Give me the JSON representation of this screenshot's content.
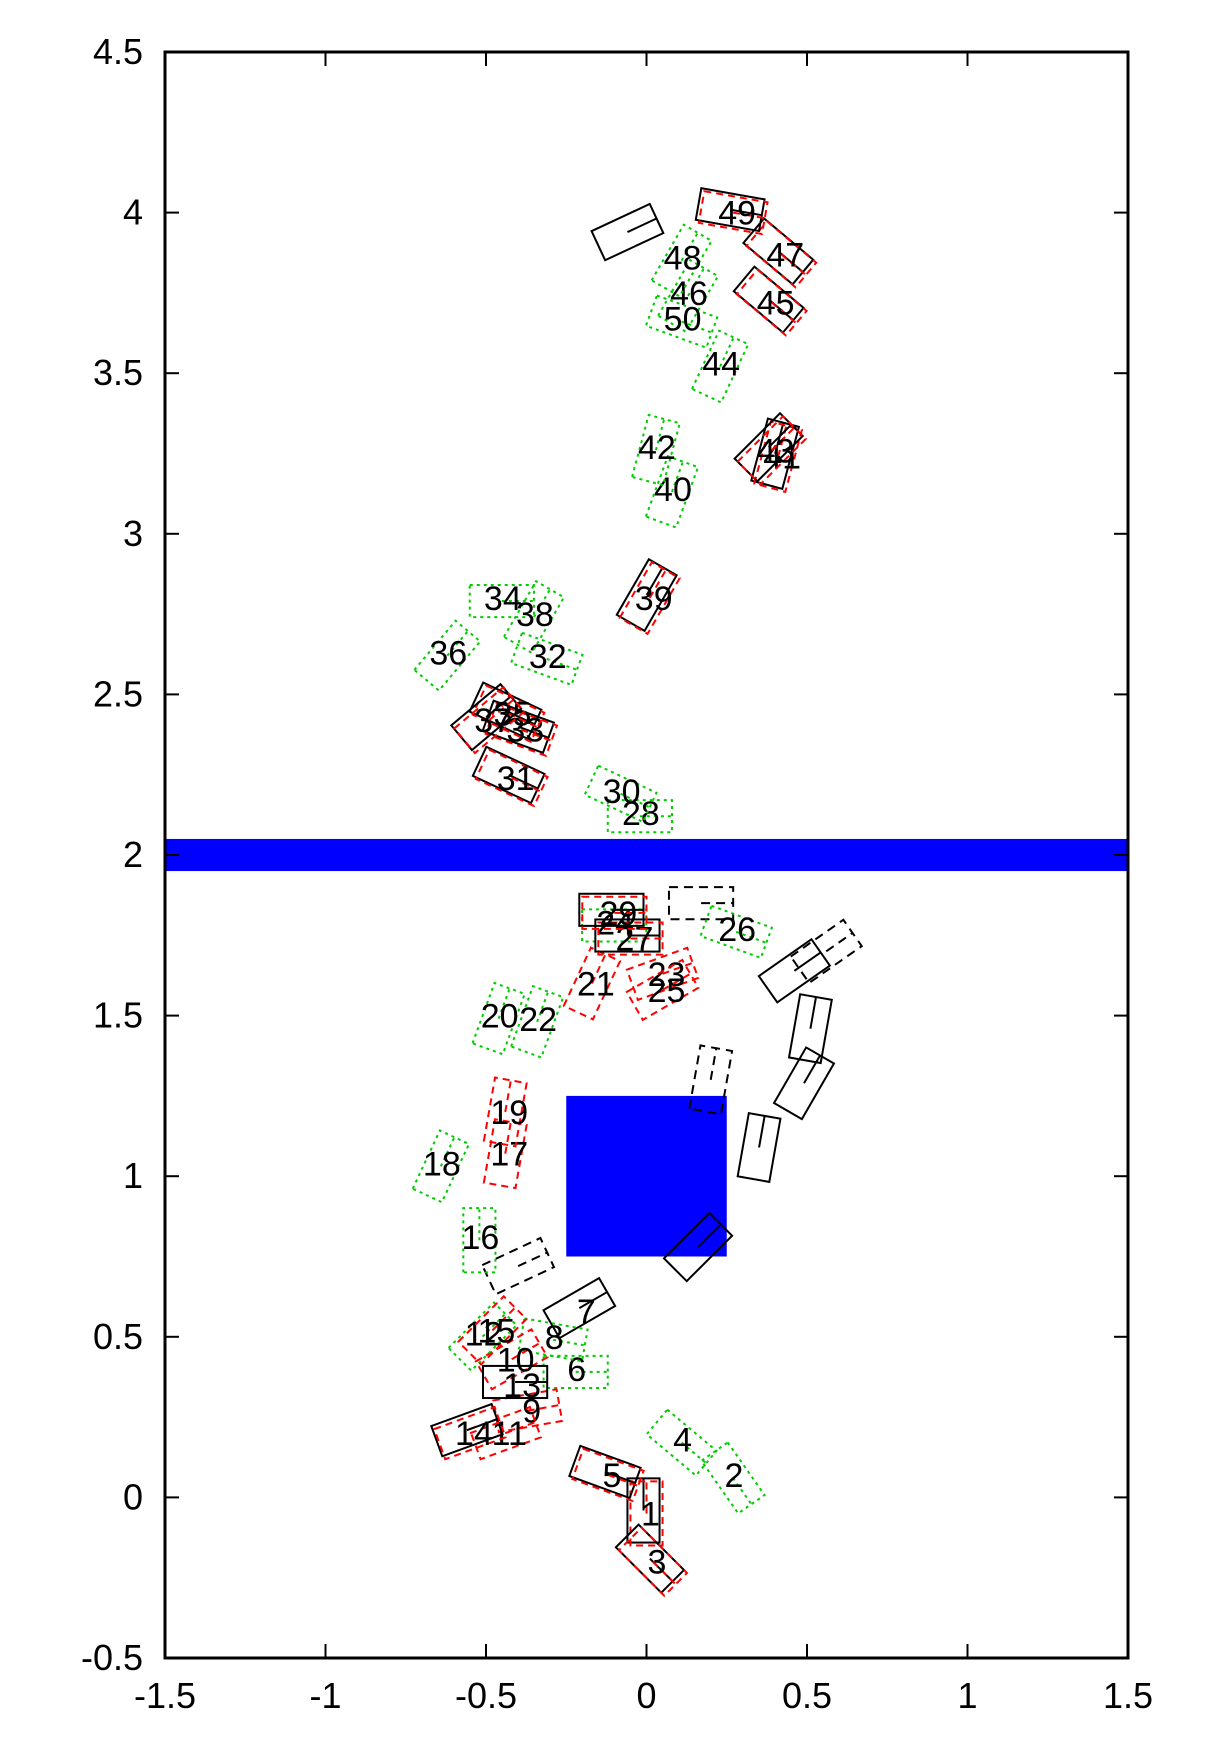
{
  "chart_data": {
    "type": "scatter",
    "xlim": [
      -1.5,
      1.5
    ],
    "ylim": [
      -0.5,
      4.5
    ],
    "x_ticks": [
      -1.5,
      -1,
      -0.5,
      0,
      0.5,
      1,
      1.5
    ],
    "y_ticks": [
      -0.5,
      0,
      0.5,
      1,
      1.5,
      2,
      2.5,
      3,
      3.5,
      4,
      4.5
    ],
    "x_tick_labels": [
      "-1.5",
      "-1",
      "-0.5",
      "0",
      "0.5",
      "1",
      "1.5"
    ],
    "y_tick_labels": [
      "-0.5",
      "0",
      "0.5",
      "1",
      "1.5",
      "2",
      "2.5",
      "3",
      "3.5",
      "4",
      "4.5"
    ],
    "grid": false,
    "colors": {
      "black": "#000000",
      "red": "#ff0000",
      "green": "#00cc00",
      "blue": "#0000ff"
    },
    "obstacles": [
      {
        "type": "wall",
        "x1": -1.5,
        "x2": 1.5,
        "y1": 1.95,
        "y2": 2.05,
        "color": "#0000ff"
      },
      {
        "type": "block",
        "x1": -0.25,
        "x2": 0.25,
        "y1": 0.75,
        "y2": 1.25,
        "color": "#0000ff"
      }
    ],
    "boxes": [
      {
        "id": "1",
        "x": 0.0,
        "y": -0.05,
        "theta": 90,
        "black": true,
        "red": true,
        "green": false
      },
      {
        "id": "2",
        "x": 0.26,
        "y": 0.07,
        "theta": -55,
        "black": false,
        "red": false,
        "green": true
      },
      {
        "id": "3",
        "x": 0.02,
        "y": -0.2,
        "theta": -45,
        "black": true,
        "red": true,
        "green": false
      },
      {
        "id": "4",
        "x": 0.1,
        "y": 0.18,
        "theta": -40,
        "black": false,
        "red": false,
        "green": true
      },
      {
        "id": "5",
        "x": -0.12,
        "y": 0.07,
        "theta": -20,
        "black": true,
        "red": true,
        "green": false
      },
      {
        "id": "6",
        "x": -0.23,
        "y": 0.4,
        "theta": 0,
        "black": false,
        "red": false,
        "green": true
      },
      {
        "id": "7",
        "x": -0.2,
        "y": 0.58,
        "theta": 30,
        "black": true,
        "red": false,
        "green": false
      },
      {
        "id": "8",
        "x": -0.3,
        "y": 0.5,
        "theta": -10,
        "black": false,
        "red": false,
        "green": true
      },
      {
        "id": "9",
        "x": -0.37,
        "y": 0.27,
        "theta": 10,
        "black": false,
        "red": true,
        "green": false
      },
      {
        "id": "10",
        "x": -0.42,
        "y": 0.43,
        "theta": 30,
        "black": false,
        "red": true,
        "green": false
      },
      {
        "id": "11",
        "x": -0.44,
        "y": 0.2,
        "theta": 20,
        "black": false,
        "red": true,
        "green": false
      },
      {
        "id": "12",
        "x": -0.52,
        "y": 0.51,
        "theta": 45,
        "black": false,
        "red": false,
        "green": true
      },
      {
        "id": "13",
        "x": -0.4,
        "y": 0.35,
        "theta": 0,
        "black": true,
        "red": false,
        "green": false
      },
      {
        "id": "14",
        "x": -0.55,
        "y": 0.2,
        "theta": 20,
        "black": true,
        "red": true,
        "green": false
      },
      {
        "id": "15",
        "x": -0.48,
        "y": 0.52,
        "theta": 45,
        "black": false,
        "red": true,
        "green": false
      },
      {
        "id": "16",
        "x": -0.53,
        "y": 0.81,
        "theta": 90,
        "black": false,
        "red": false,
        "green": true
      },
      {
        "id": "17",
        "x": -0.44,
        "y": 1.07,
        "theta": 80,
        "black": false,
        "red": true,
        "green": false
      },
      {
        "id": "18",
        "x": -0.65,
        "y": 1.04,
        "theta": 65,
        "black": false,
        "red": false,
        "green": true
      },
      {
        "id": "19",
        "x": -0.44,
        "y": 1.2,
        "theta": 80,
        "black": false,
        "red": true,
        "green": false
      },
      {
        "id": "20",
        "x": -0.47,
        "y": 1.5,
        "theta": 70,
        "black": false,
        "red": false,
        "green": true
      },
      {
        "id": "21",
        "x": -0.17,
        "y": 1.6,
        "theta": 65,
        "black": false,
        "red": true,
        "green": false
      },
      {
        "id": "22",
        "x": -0.35,
        "y": 1.49,
        "theta": 70,
        "black": false,
        "red": false,
        "green": true
      },
      {
        "id": "23",
        "x": 0.05,
        "y": 1.63,
        "theta": 20,
        "black": false,
        "red": true,
        "green": false
      },
      {
        "id": "24",
        "x": -0.11,
        "y": 1.79,
        "theta": 0,
        "black": false,
        "red": false,
        "green": true
      },
      {
        "id": "25",
        "x": 0.05,
        "y": 1.58,
        "theta": 30,
        "black": false,
        "red": true,
        "green": false
      },
      {
        "id": "26",
        "x": 0.27,
        "y": 1.77,
        "theta": -20,
        "black": false,
        "red": false,
        "green": true
      },
      {
        "id": "27",
        "x": -0.05,
        "y": 1.74,
        "theta": 0,
        "black": true,
        "red": true,
        "green": false
      },
      {
        "id": "28",
        "x": -0.03,
        "y": 2.13,
        "theta": 0,
        "black": false,
        "red": false,
        "green": true
      },
      {
        "id": "29",
        "x": -0.1,
        "y": 1.82,
        "theta": 0,
        "black": true,
        "red": true,
        "green": false
      },
      {
        "id": "30",
        "x": -0.09,
        "y": 2.2,
        "theta": -25,
        "black": false,
        "red": false,
        "green": true
      },
      {
        "id": "31",
        "x": -0.42,
        "y": 2.24,
        "theta": -25,
        "black": true,
        "red": true,
        "green": false
      },
      {
        "id": "32",
        "x": -0.32,
        "y": 2.62,
        "theta": -20,
        "black": false,
        "red": false,
        "green": true
      },
      {
        "id": "33",
        "x": -0.39,
        "y": 2.39,
        "theta": -20,
        "black": true,
        "red": true,
        "green": false
      },
      {
        "id": "34",
        "x": -0.46,
        "y": 2.8,
        "theta": 0,
        "black": false,
        "red": false,
        "green": true
      },
      {
        "id": "35",
        "x": -0.43,
        "y": 2.44,
        "theta": -25,
        "black": true,
        "red": true,
        "green": false
      },
      {
        "id": "36",
        "x": -0.63,
        "y": 2.63,
        "theta": 50,
        "black": false,
        "red": false,
        "green": true
      },
      {
        "id": "37",
        "x": -0.49,
        "y": 2.42,
        "theta": 40,
        "black": true,
        "red": true,
        "green": false
      },
      {
        "id": "38",
        "x": -0.36,
        "y": 2.75,
        "theta": 60,
        "black": false,
        "red": false,
        "green": true
      },
      {
        "id": "39",
        "x": 0.01,
        "y": 2.8,
        "theta": 60,
        "black": true,
        "red": true,
        "green": false
      },
      {
        "id": "40",
        "x": 0.07,
        "y": 3.14,
        "theta": 70,
        "black": false,
        "red": false,
        "green": true
      },
      {
        "id": "41",
        "x": 0.41,
        "y": 3.24,
        "theta": 75,
        "black": true,
        "red": true,
        "green": false
      },
      {
        "id": "42",
        "x": 0.02,
        "y": 3.27,
        "theta": 75,
        "black": false,
        "red": false,
        "green": true
      },
      {
        "id": "43",
        "x": 0.39,
        "y": 3.26,
        "theta": 45,
        "black": true,
        "red": true,
        "green": false
      },
      {
        "id": "44",
        "x": 0.22,
        "y": 3.53,
        "theta": 65,
        "black": false,
        "red": false,
        "green": true
      },
      {
        "id": "45",
        "x": 0.39,
        "y": 3.72,
        "theta": -40,
        "black": true,
        "red": true,
        "green": false
      },
      {
        "id": "46",
        "x": 0.12,
        "y": 3.75,
        "theta": 60,
        "black": false,
        "red": false,
        "green": true
      },
      {
        "id": "47",
        "x": 0.42,
        "y": 3.87,
        "theta": -40,
        "black": true,
        "red": true,
        "green": false
      },
      {
        "id": "48",
        "x": 0.1,
        "y": 3.86,
        "theta": 60,
        "black": false,
        "red": false,
        "green": true
      },
      {
        "id": "49",
        "x": 0.27,
        "y": 4.0,
        "theta": -10,
        "black": true,
        "red": true,
        "green": false
      },
      {
        "id": "50",
        "x": 0.1,
        "y": 3.67,
        "theta": -20,
        "black": false,
        "red": false,
        "green": true
      }
    ],
    "extra_boxes": [
      {
        "x": -0.05,
        "y": 3.93,
        "theta": 25,
        "style": "black"
      },
      {
        "x": 0.52,
        "y": 1.45,
        "theta": 80,
        "style": "black"
      },
      {
        "x": 0.47,
        "y": 1.63,
        "theta": 35,
        "style": "black"
      },
      {
        "x": 0.56,
        "y": 1.7,
        "theta": 35,
        "style": "black-dashed"
      },
      {
        "x": 0.5,
        "y": 1.28,
        "theta": 60,
        "style": "black"
      },
      {
        "x": 0.36,
        "y": 1.08,
        "theta": 80,
        "style": "black"
      },
      {
        "x": 0.2,
        "y": 1.3,
        "theta": 80,
        "style": "black-dashed"
      },
      {
        "x": 0.17,
        "y": 1.85,
        "theta": 0,
        "style": "black-dashed"
      },
      {
        "x": 0.17,
        "y": 0.77,
        "theta": 45,
        "style": "black"
      },
      {
        "x": -0.4,
        "y": 0.72,
        "theta": 25,
        "style": "black-dashed"
      }
    ]
  }
}
